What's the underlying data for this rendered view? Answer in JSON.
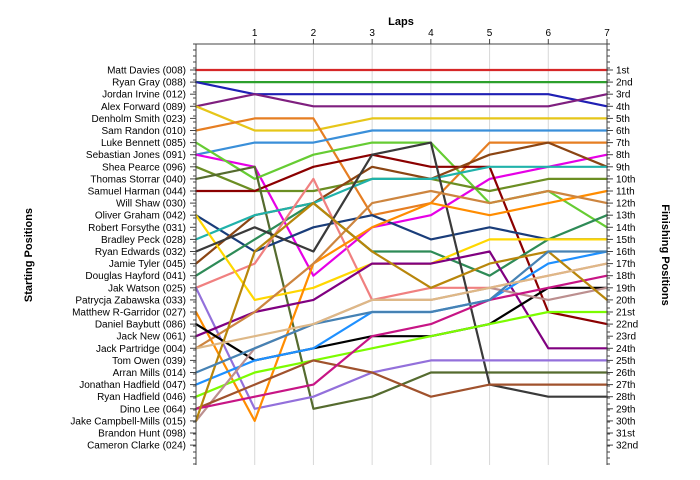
{
  "chart_data": {
    "type": "line",
    "title": "",
    "xlabel": "Laps",
    "ylabel_left": "Starting Positions",
    "ylabel_right": "Finishing Positions",
    "x": [
      0,
      1,
      2,
      3,
      4,
      5,
      6,
      7
    ],
    "x_tick_labels": [
      "1",
      "2",
      "3",
      "4",
      "5",
      "6",
      "7"
    ],
    "ylim": [
      1,
      32
    ],
    "y_inverted": true,
    "grid": "vertical",
    "starting_labels": [
      "Matt Davies (008)",
      "Ryan Gray (088)",
      "Jordan Irvine (012)",
      "Alex Forward (089)",
      "Denholm Smith (023)",
      "Sam Randon (010)",
      "Luke Bennett (085)",
      "Sebastian Jones (091)",
      "Shea Pearce (096)",
      "Thomas Storrar (040)",
      "Samuel Harman (044)",
      "Will Shaw (030)",
      "Oliver Graham (042)",
      "Robert Forsythe (031)",
      "Bradley Peck (028)",
      "Ryan Edwards (032)",
      "Jamie Tyler (045)",
      "Douglas Hayford (041)",
      "Jak Watson (025)",
      "Patrycja Zabawska (033)",
      "Matthew R-Garridor (027)",
      "Daniel Baybutt (086)",
      "Jack New (061)",
      "Jack Partridge (004)",
      "Tom Owen (039)",
      "Arran Mills (014)",
      "Jonathan Hadfield (047)",
      "Ryan Hadfield (046)",
      "Dino Lee (064)",
      "Jake Campbell-Mills (015)",
      "Brandon Hunt (098)",
      "Cameron Clarke (024)"
    ],
    "finishing_labels": [
      "1st",
      "2nd",
      "3rd",
      "4th",
      "5th",
      "6th",
      "7th",
      "8th",
      "9th",
      "10th",
      "11th",
      "12th",
      "13th",
      "14th",
      "15th",
      "16th",
      "17th",
      "18th",
      "19th",
      "20th",
      "21st",
      "22nd",
      "23rd",
      "24th",
      "25th",
      "26th",
      "27th",
      "28th",
      "29th",
      "30th",
      "31st",
      "32nd"
    ],
    "series": [
      {
        "color": "#d62728",
        "positions": [
          1,
          1,
          1,
          1,
          1,
          1,
          1,
          1
        ]
      },
      {
        "color": "#2ca02c",
        "positions": [
          2,
          2,
          2,
          2,
          2,
          2,
          2,
          2
        ]
      },
      {
        "color": "#1f1fb4",
        "positions": [
          2,
          3,
          3,
          3,
          3,
          3,
          3,
          4
        ]
      },
      {
        "color": "#7f1f7f",
        "positions": [
          4,
          3,
          4,
          4,
          4,
          4,
          4,
          3
        ]
      },
      {
        "color": "#e6c619",
        "positions": [
          4,
          6,
          6,
          5,
          5,
          5,
          5,
          5
        ]
      },
      {
        "color": "#e67e22",
        "positions": [
          6,
          5,
          5,
          13,
          12,
          7,
          7,
          7
        ]
      },
      {
        "color": "#3a8fd9",
        "positions": [
          8,
          7,
          7,
          6,
          6,
          6,
          6,
          6
        ]
      },
      {
        "color": "#e600e6",
        "positions": [
          8,
          9,
          18,
          14,
          13,
          10,
          9,
          8
        ]
      },
      {
        "color": "#66cc33",
        "positions": [
          7,
          10,
          8,
          7,
          7,
          12,
          11,
          14
        ]
      },
      {
        "color": "#6b8e23",
        "positions": [
          9,
          11,
          11,
          10,
          10,
          11,
          10,
          10
        ]
      },
      {
        "color": "#8b0000",
        "positions": [
          11,
          11,
          9,
          8,
          9,
          9,
          21,
          22
        ]
      },
      {
        "color": "#556b2f",
        "positions": [
          10,
          9,
          29,
          28,
          26,
          26,
          26,
          26
        ]
      },
      {
        "color": "#1a3d7a",
        "positions": [
          13,
          16,
          14,
          13,
          15,
          14,
          15,
          15
        ]
      },
      {
        "color": "#8b4513",
        "positions": [
          17,
          13,
          12,
          9,
          10,
          8,
          7,
          9
        ]
      },
      {
        "color": "#20b2aa",
        "positions": [
          15,
          13,
          12,
          10,
          10,
          9,
          9,
          9
        ]
      },
      {
        "color": "#2e8b57",
        "positions": [
          18,
          15,
          12,
          16,
          16,
          18,
          15,
          13
        ]
      },
      {
        "color": "#f08080",
        "positions": [
          19,
          17,
          10,
          20,
          19,
          19,
          18,
          17
        ]
      },
      {
        "color": "#ffd700",
        "positions": [
          13,
          20,
          19,
          17,
          17,
          15,
          15,
          15
        ]
      },
      {
        "color": "#3a3a3a",
        "positions": [
          16,
          14,
          16,
          8,
          7,
          27,
          28,
          28
        ]
      },
      {
        "color": "#9370db",
        "positions": [
          19,
          29,
          28,
          26,
          25,
          25,
          25,
          25
        ]
      },
      {
        "color": "#ff8c00",
        "positions": [
          21,
          30,
          17,
          14,
          12,
          13,
          12,
          11
        ]
      },
      {
        "color": "#800080",
        "positions": [
          23,
          21,
          20,
          17,
          17,
          16,
          24,
          24
        ]
      },
      {
        "color": "#cd853f",
        "positions": [
          24,
          21,
          17,
          12,
          11,
          12,
          11,
          12
        ]
      },
      {
        "color": "#000000",
        "positions": [
          22,
          25,
          24,
          23,
          23,
          22,
          19,
          19
        ]
      },
      {
        "color": "#1e90ff",
        "positions": [
          27,
          25,
          24,
          21,
          21,
          20,
          17,
          16
        ]
      },
      {
        "color": "#7cfc00",
        "positions": [
          28,
          26,
          25,
          24,
          23,
          22,
          21,
          21
        ]
      },
      {
        "color": "#bc8f8f",
        "positions": [
          30,
          24,
          22,
          20,
          20,
          19,
          20,
          19
        ]
      },
      {
        "color": "#a0522d",
        "positions": [
          29,
          27,
          25,
          26,
          28,
          27,
          27,
          27
        ]
      },
      {
        "color": "#c71585",
        "positions": [
          29,
          28,
          27,
          23,
          22,
          20,
          19,
          18
        ]
      },
      {
        "color": "#b8860b",
        "positions": [
          30,
          16,
          12,
          16,
          19,
          17,
          16,
          20
        ]
      },
      {
        "color": "#4682b4",
        "positions": [
          26,
          24,
          22,
          21,
          21,
          20,
          16,
          16
        ]
      },
      {
        "color": "#deb887",
        "positions": [
          24,
          23,
          22,
          20,
          20,
          19,
          18,
          17
        ]
      }
    ]
  }
}
